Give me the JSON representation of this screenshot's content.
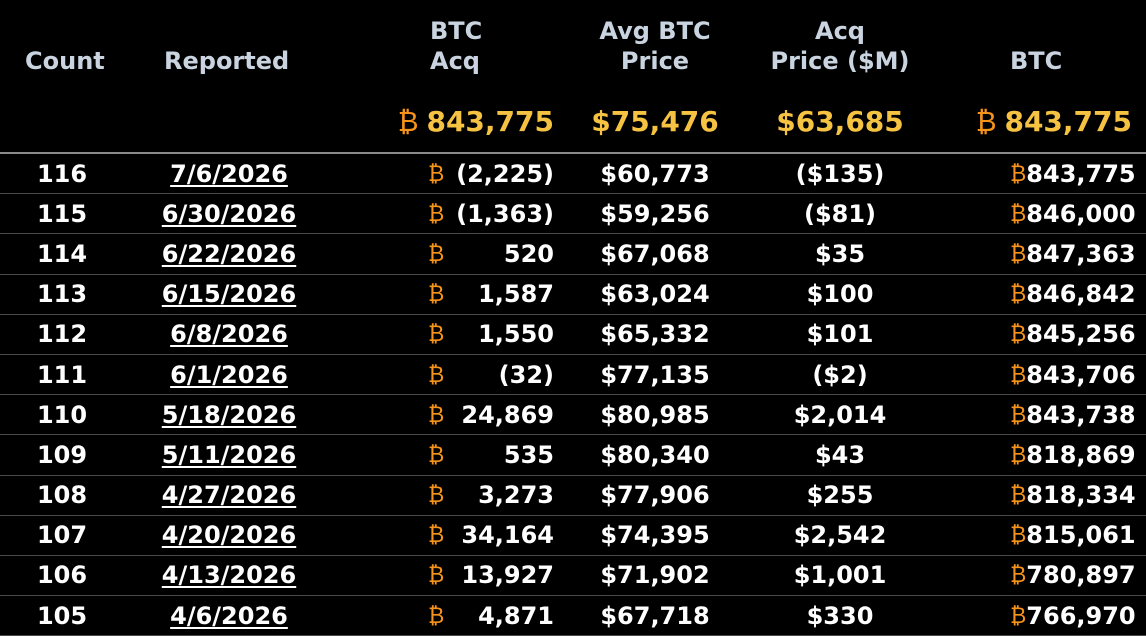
{
  "columns": {
    "count": "Count",
    "reported": "Reported",
    "btc_acq_line1": "BTC",
    "btc_acq_line2": "Acq",
    "avg_price_line1": "Avg BTC",
    "avg_price_line2": "Price",
    "acq_price_line1": "Acq",
    "acq_price_line2": "Price ($M)",
    "btc": "BTC"
  },
  "totals": {
    "btc_acq": "843,775",
    "avg_price": "$75,476",
    "acq_price": "$63,685",
    "btc": "843,775"
  },
  "btc_symbol": "₿",
  "colors": {
    "background": "#000000",
    "header_text": "#c9d4e0",
    "totals_text": "#f5c242",
    "bitcoin_orange": "#f7931a",
    "row_text": "#ffffff"
  },
  "rows": [
    {
      "count": "116",
      "reported": "7/6/2026",
      "btc_acq": "(2,225)",
      "avg_price": "$60,773",
      "acq_price": "($135)",
      "btc": "843,775"
    },
    {
      "count": "115",
      "reported": "6/30/2026",
      "btc_acq": "(1,363)",
      "avg_price": "$59,256",
      "acq_price": "($81)",
      "btc": "846,000"
    },
    {
      "count": "114",
      "reported": "6/22/2026",
      "btc_acq": "520",
      "avg_price": "$67,068",
      "acq_price": "$35",
      "btc": "847,363"
    },
    {
      "count": "113",
      "reported": "6/15/2026",
      "btc_acq": "1,587",
      "avg_price": "$63,024",
      "acq_price": "$100",
      "btc": "846,842"
    },
    {
      "count": "112",
      "reported": "6/8/2026",
      "btc_acq": "1,550",
      "avg_price": "$65,332",
      "acq_price": "$101",
      "btc": "845,256"
    },
    {
      "count": "111",
      "reported": "6/1/2026",
      "btc_acq": "(32)",
      "avg_price": "$77,135",
      "acq_price": "($2)",
      "btc": "843,706"
    },
    {
      "count": "110",
      "reported": "5/18/2026",
      "btc_acq": "24,869",
      "avg_price": "$80,985",
      "acq_price": "$2,014",
      "btc": "843,738"
    },
    {
      "count": "109",
      "reported": "5/11/2026",
      "btc_acq": "535",
      "avg_price": "$80,340",
      "acq_price": "$43",
      "btc": "818,869"
    },
    {
      "count": "108",
      "reported": "4/27/2026",
      "btc_acq": "3,273",
      "avg_price": "$77,906",
      "acq_price": "$255",
      "btc": "818,334"
    },
    {
      "count": "107",
      "reported": "4/20/2026",
      "btc_acq": "34,164",
      "avg_price": "$74,395",
      "acq_price": "$2,542",
      "btc": "815,061"
    },
    {
      "count": "106",
      "reported": "4/13/2026",
      "btc_acq": "13,927",
      "avg_price": "$71,902",
      "acq_price": "$1,001",
      "btc": "780,897"
    },
    {
      "count": "105",
      "reported": "4/6/2026",
      "btc_acq": "4,871",
      "avg_price": "$67,718",
      "acq_price": "$330",
      "btc": "766,970"
    }
  ]
}
